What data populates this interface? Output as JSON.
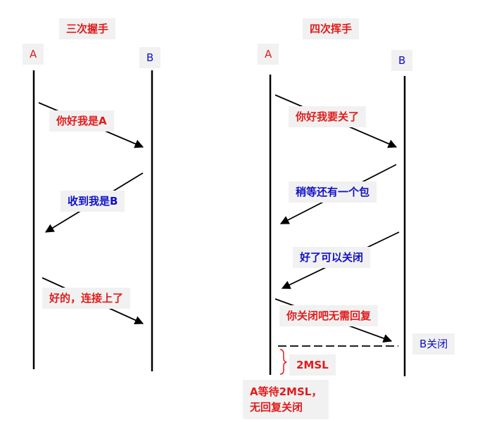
{
  "three_way": {
    "title": "三次握手",
    "party_a": "A",
    "party_b": "B",
    "messages": [
      "你好我是A",
      "收到我是B",
      "好的，连接上了"
    ]
  },
  "four_way": {
    "title": "四次挥手",
    "party_a": "A",
    "party_b": "B",
    "messages": [
      "你好我要关了",
      "稍等还有一个包",
      "好了可以关闭",
      "你关闭吧无需回复"
    ],
    "b_closed": "B关闭",
    "msl_label": "2MSL",
    "a_wait_line1": "A等待2MSL，",
    "a_wait_line2": "无回复关闭"
  },
  "colors": {
    "red": "#e11b1b",
    "blue": "#1010c8",
    "label_bg": "#f1f1f1",
    "line": "#000000"
  }
}
